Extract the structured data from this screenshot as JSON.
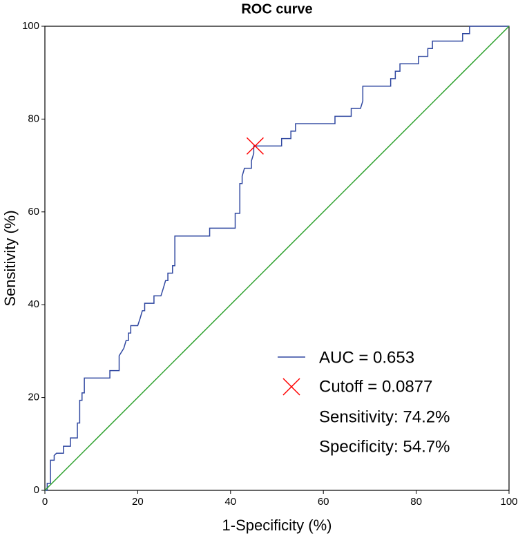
{
  "chart_data": {
    "type": "line",
    "title": "ROC curve",
    "x_label": "1-Specificity (%)",
    "y_label": "Sensitivity (%)",
    "xlim": [
      0,
      100
    ],
    "ylim": [
      0,
      100
    ],
    "xticks": [
      0,
      20,
      40,
      60,
      80,
      100
    ],
    "yticks": [
      0,
      20,
      40,
      60,
      80,
      100
    ],
    "series": [
      {
        "name": "AUC = 0.653",
        "color": "#2f47a0",
        "x": [
          0,
          0.5,
          0.5,
          1.2,
          1.2,
          2,
          2,
          2.5,
          4,
          4,
          5.5,
          5.5,
          7,
          7,
          7.5,
          7.5,
          8,
          8,
          8.5,
          8.5,
          14,
          14,
          16,
          16,
          17,
          17.5,
          18,
          18,
          18.5,
          18.5,
          20,
          20.5,
          21,
          21.5,
          21.5,
          23.5,
          23.5,
          25,
          25.5,
          26,
          26.5,
          26.5,
          27.5,
          27.5,
          28,
          28,
          35.5,
          35.5,
          41,
          41,
          42,
          42,
          42.5,
          42.5,
          43,
          44.5,
          44.5,
          45,
          45,
          51,
          51,
          53,
          53,
          54,
          54,
          62.5,
          62.5,
          66,
          66,
          68,
          68.5,
          68.5,
          74.5,
          74.5,
          75.5,
          75.5,
          76.5,
          76.5,
          80.5,
          80.5,
          82.5,
          82.5,
          83.5,
          83.5,
          90,
          90,
          91.5,
          91.5,
          100
        ],
        "values": [
          0,
          0,
          1.5,
          1.5,
          6.5,
          6.5,
          7.5,
          8,
          8,
          9.5,
          9.5,
          11.3,
          11.3,
          14.5,
          14.5,
          19.4,
          19.4,
          21,
          21,
          24.2,
          24.2,
          25.8,
          25.8,
          29,
          30.6,
          32.3,
          32.3,
          33.9,
          33.9,
          35.5,
          35.5,
          37,
          38.7,
          38.7,
          40.3,
          40.3,
          41.9,
          41.9,
          43.5,
          45.2,
          45.2,
          46.8,
          46.8,
          48.4,
          48.4,
          54.8,
          54.8,
          56.5,
          56.5,
          59.7,
          59.7,
          66.1,
          66.1,
          67.7,
          69.4,
          69.4,
          71,
          72.6,
          74.2,
          74.2,
          75.8,
          75.8,
          77.4,
          77.4,
          79,
          79,
          80.6,
          80.6,
          82.3,
          82.3,
          83.9,
          87.1,
          87.1,
          88.7,
          88.7,
          90.3,
          90.3,
          91.9,
          91.9,
          93.5,
          93.5,
          95.2,
          95.2,
          96.8,
          96.8,
          98.4,
          98.4,
          100,
          100
        ]
      },
      {
        "color": "#2ca02c",
        "x": [
          0,
          100
        ],
        "values": [
          0,
          100
        ]
      }
    ],
    "cutoff": {
      "name": "Cutoff = 0.0877",
      "x": 45.3,
      "y": 74.2,
      "color": "#ff0000"
    },
    "annotations": [
      "Sensitivity: 74.2%",
      "Specificity: 54.7%"
    ]
  }
}
